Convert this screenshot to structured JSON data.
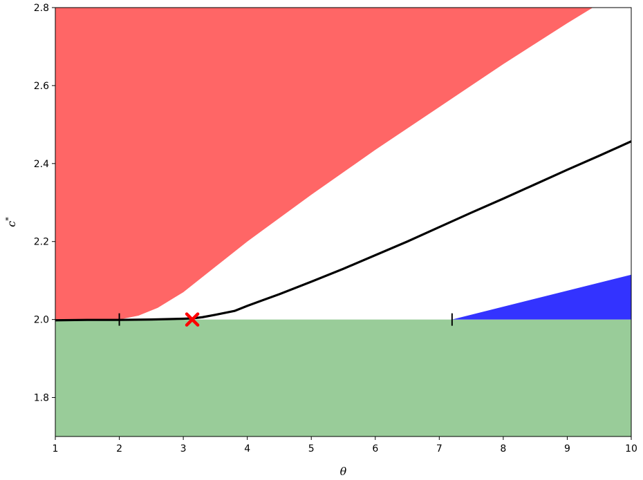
{
  "chart_data": {
    "type": "area",
    "xlabel": "θ",
    "ylabel": "c",
    "ylabel_superscript": "*",
    "xlim": [
      1,
      10
    ],
    "ylim": [
      1.7,
      2.8
    ],
    "xticks": [
      1,
      2,
      3,
      4,
      5,
      6,
      7,
      8,
      9,
      10
    ],
    "yticks": [
      1.8,
      2.0,
      2.2,
      2.4,
      2.6,
      2.8
    ],
    "ytick_labels": [
      "1.8",
      "2.0",
      "2.2",
      "2.4",
      "2.6",
      "2.8"
    ],
    "grid": false,
    "colors": {
      "red_region": "#ff6666",
      "green_region": "#99cc99",
      "blue_region": "#3333ff",
      "curve": "#000000",
      "marker": "#ff0000"
    },
    "regions": {
      "red_boundary": {
        "x": [
          1.0,
          2.0,
          2.3,
          2.6,
          3.0,
          3.5,
          4.0,
          5.0,
          6.0,
          7.0,
          8.0,
          9.0,
          9.6,
          10.0
        ],
        "y": [
          2.0,
          2.0,
          2.01,
          2.03,
          2.07,
          2.135,
          2.2,
          2.32,
          2.435,
          2.545,
          2.655,
          2.76,
          2.82,
          2.865
        ]
      },
      "green_band": {
        "y_from": 1.7,
        "y_to": 2.0
      },
      "blue_region": {
        "x": [
          7.2,
          10.0
        ],
        "y_lower": [
          2.0,
          2.0
        ],
        "y_upper": [
          2.0,
          2.115
        ]
      }
    },
    "series": [
      {
        "x": [
          1.0,
          1.5,
          2.0,
          2.5,
          3.0,
          3.15,
          3.3,
          3.5,
          3.8,
          4.0,
          4.5,
          5.0,
          5.5,
          6.0,
          6.5,
          7.0,
          7.5,
          8.0,
          8.5,
          9.0,
          9.5,
          10.0
        ],
        "y": [
          1.998,
          1.999,
          1.999,
          2.0,
          2.002,
          2.003,
          2.006,
          2.012,
          2.022,
          2.035,
          2.065,
          2.097,
          2.13,
          2.165,
          2.2,
          2.237,
          2.274,
          2.31,
          2.347,
          2.384,
          2.42,
          2.457
        ]
      }
    ],
    "tick_marks": [
      {
        "x": 2.0,
        "y": 2.0
      },
      {
        "x": 7.2,
        "y": 2.0
      }
    ],
    "special_point": {
      "x": 3.14,
      "y": 2.0,
      "marker": "x"
    }
  }
}
